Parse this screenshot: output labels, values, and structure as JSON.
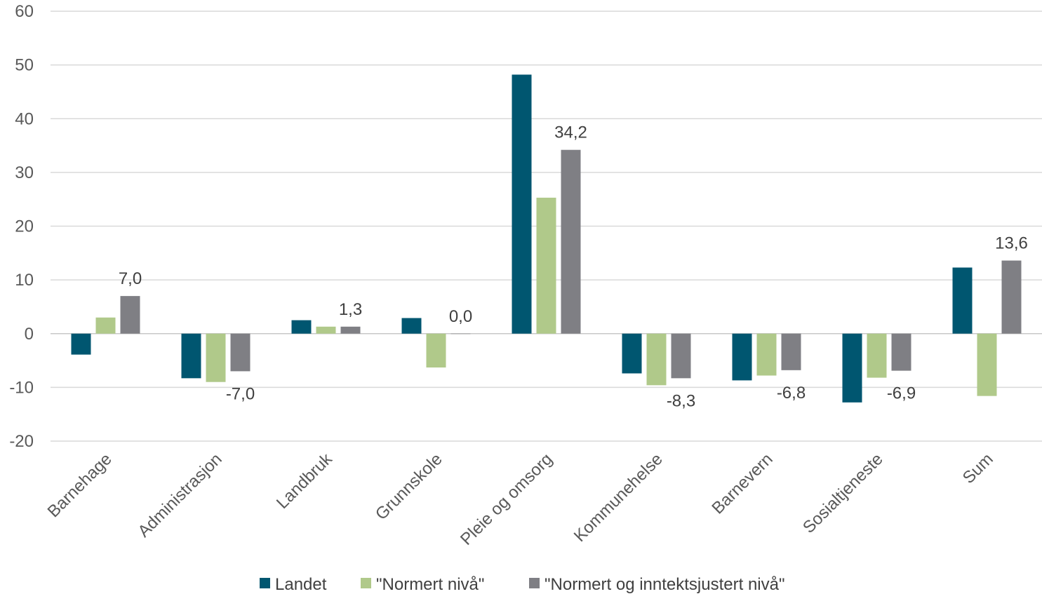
{
  "chart_data": {
    "type": "bar",
    "categories": [
      "Barnehage",
      "Administrasjon",
      "Landbruk",
      "Grunnskole",
      "Pleie og omsorg",
      "Kommunehelse",
      "Barnevern",
      "Sosialtjeneste",
      "Sum"
    ],
    "series": [
      {
        "name": "Landet",
        "color": "#005670",
        "values": [
          -3.9,
          -8.3,
          2.5,
          2.9,
          48.2,
          -7.4,
          -8.7,
          -12.8,
          12.3
        ]
      },
      {
        "name": "\"Normert nivå\"",
        "color": "#B0C98A",
        "values": [
          3.0,
          -9.0,
          1.3,
          -6.3,
          25.3,
          -9.6,
          -7.8,
          -8.2,
          -11.6
        ]
      },
      {
        "name": "\"Normert og inntektsjustert nivå\"",
        "color": "#7F7F84",
        "values": [
          7.0,
          -7.0,
          1.3,
          0.0,
          34.2,
          -8.3,
          -6.8,
          -6.9,
          13.6
        ]
      }
    ],
    "data_labels": [
      "7,0",
      "-7,0",
      "1,3",
      "0,0",
      "34,2",
      "-8,3",
      "-6,8",
      "-6,9",
      "13,6"
    ],
    "y_ticks": [
      "60",
      "50",
      "40",
      "30",
      "20",
      "10",
      "0",
      "-10",
      "-20"
    ],
    "ylim": [
      -20,
      60
    ],
    "grid": true,
    "legend_position": "bottom"
  }
}
